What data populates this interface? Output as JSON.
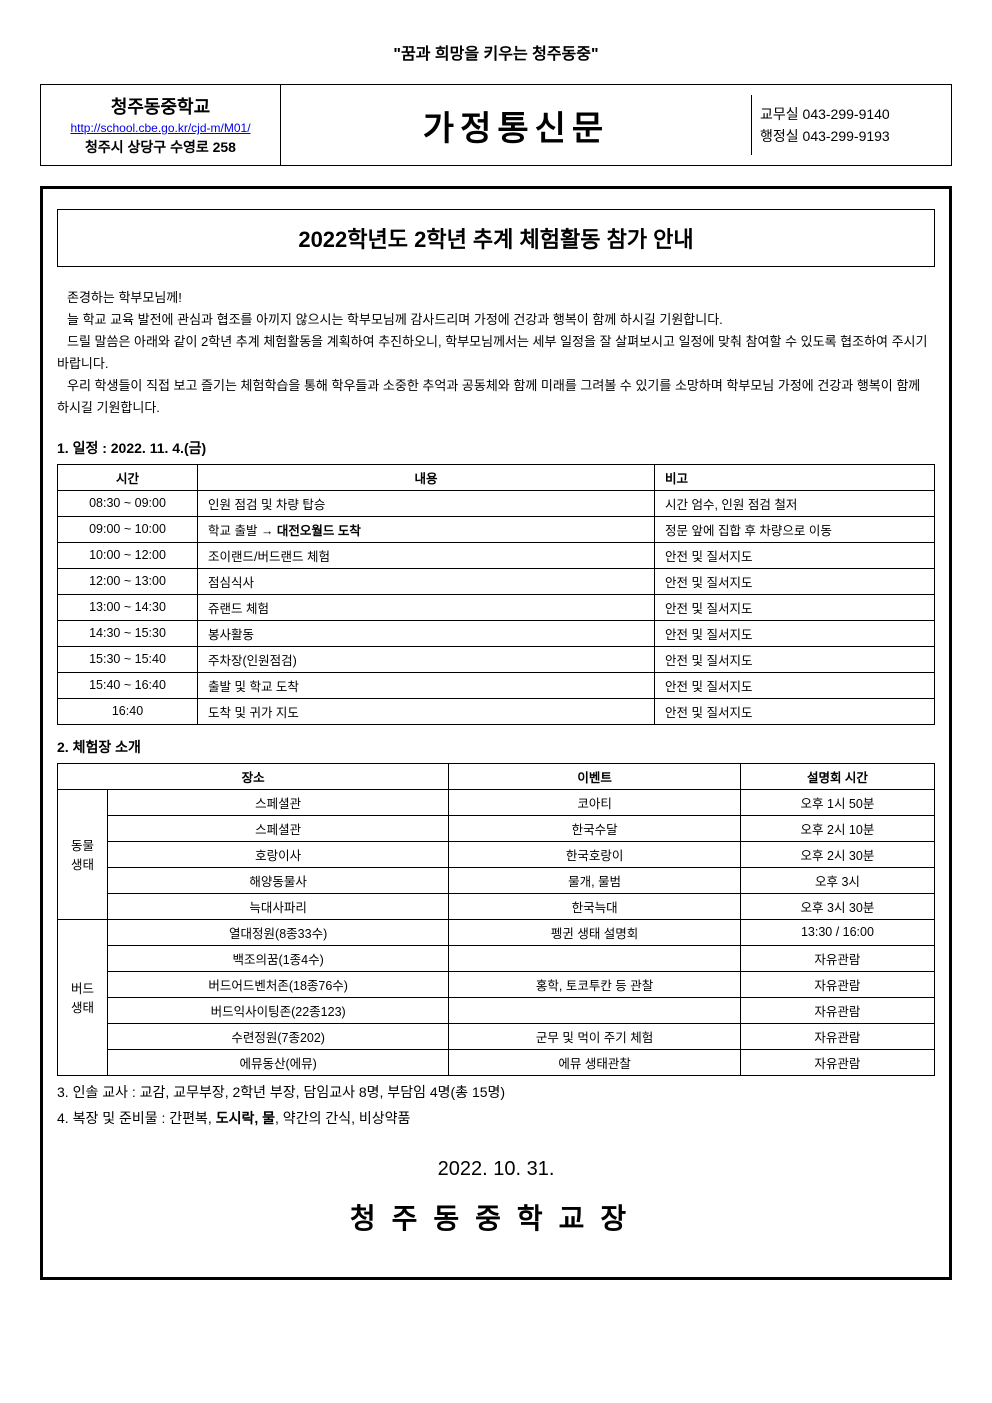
{
  "slogan": "\"꿈과 희망을 키우는 청주동중\"",
  "header": {
    "school_name": "청주동중학교",
    "school_url": "http://school.cbe.go.kr/cjd-m/M01/",
    "school_addr": "청주시 상당구 수영로 258",
    "banner": "가정통신문",
    "office1_label": "교무실",
    "office1_phone": "043-299-9140",
    "office2_label": "행정실",
    "office2_phone": "043-299-9193"
  },
  "title": "2022학년도 2학년 추계 체험활동 참가 안내",
  "intro": {
    "line1": "존경하는 학부모님께!",
    "line2": "늘 학교 교육 발전에 관심과 협조를 아끼지 않으시는 학부모님께 감사드리며 가정에 건강과 행복이 함께 하시길 기원합니다.",
    "line3": "드릴 말씀은 아래와 같이 2학년 추계 체험활동을 계획하여 추진하오니, 학부모님께서는 세부 일정을 잘 살펴보시고 일정에 맞춰 참여할 수 있도록 협조하여 주시기 바랍니다.",
    "line4": "우리 학생들이 직접 보고 즐기는 체험학습을 통해 학우들과 소중한 추억과 공동체와 함께 미래를 그려볼 수 있기를 소망하며 학부모님 가정에 건강과 행복이 함께 하시길 기원합니다."
  },
  "schedule": {
    "heading": "1. 일정 : 2022. 11. 4.(금)",
    "head_time": "시간",
    "head_content": "내용",
    "head_note": "비고",
    "rows": [
      {
        "time": "08:30 ~ 09:00",
        "content": "인원 점검 및 차량 탑승",
        "note": "시간 엄수, 인원 점검 철저"
      },
      {
        "time": "09:00 ~ 10:00",
        "content_prefix": "학교 출발 → ",
        "content_bold": "대전오월드 도착",
        "note": "정문 앞에 집합 후 차량으로 이동"
      },
      {
        "time": "10:00 ~ 12:00",
        "content": "조이랜드/버드랜드 체험",
        "note": "안전 및 질서지도"
      },
      {
        "time": "12:00 ~ 13:00",
        "content": "점심식사",
        "note": "안전 및 질서지도"
      },
      {
        "time": "13:00 ~ 14:30",
        "content": "쥬랜드 체험",
        "note": "안전 및 질서지도"
      },
      {
        "time": "14:30 ~ 15:30",
        "content": "봉사활동",
        "note": "안전 및 질서지도"
      },
      {
        "time": "15:30 ~ 15:40",
        "content": "주차장(인원점검)",
        "note": "안전 및 질서지도"
      },
      {
        "time": "15:40 ~ 16:40",
        "content": "출발 및 학교 도착",
        "note": "안전 및 질서지도"
      },
      {
        "time": "16:40",
        "content": "도착 및 귀가 지도",
        "note": "안전 및 질서지도"
      }
    ]
  },
  "venue": {
    "heading": "2. 체험장 소개",
    "head_place": "장소",
    "head_event": "이벤트",
    "head_time": "설명회 시간",
    "cat1": "동물생태",
    "cat2": "버드생태",
    "group1": [
      {
        "place": "스페셜관",
        "event": "코아티",
        "time": "오후 1시 50분"
      },
      {
        "place": "스페셜관",
        "event": "한국수달",
        "time": "오후 2시 10분"
      },
      {
        "place": "호랑이사",
        "event": "한국호랑이",
        "time": "오후 2시 30분"
      },
      {
        "place": "해양동물사",
        "event": "물개, 물범",
        "time": "오후 3시"
      },
      {
        "place": "늑대사파리",
        "event": "한국늑대",
        "time": "오후 3시 30분"
      }
    ],
    "group2": [
      {
        "place": "열대정원(8종33수)",
        "event": "펭귄 생태 설명회",
        "time": "13:30 / 16:00"
      },
      {
        "place": "백조의꿈(1종4수)",
        "event": "",
        "time": "자유관람"
      },
      {
        "place": "버드어드벤처존(18종76수)",
        "event": "홍학, 토코투칸 등 관찰",
        "time": "자유관람"
      },
      {
        "place": "버드익사이팅존(22종123)",
        "event": "",
        "time": "자유관람"
      },
      {
        "place": "수련정원(7종202)",
        "event": "군무 및 먹이 주기 체험",
        "time": "자유관람"
      },
      {
        "place": "에뮤동산(에뮤)",
        "event": "에뮤 생태관찰",
        "time": "자유관람"
      }
    ]
  },
  "item3": "3. 인솔 교사 : 교감, 교무부장, 2학년 부장, 담임교사 8명, 부담임 4명(총 15명)",
  "item4_prefix": "4. 복장 및 준비물 : 간편복, ",
  "item4_bold": "도시락, 물",
  "item4_suffix": ", 약간의 간식, 비상약품",
  "date": "2022. 10. 31.",
  "principal": "청주동중학교장",
  "colors": {
    "text": "#000000",
    "border": "#000000",
    "link": "#0000ee",
    "background": "#ffffff"
  }
}
